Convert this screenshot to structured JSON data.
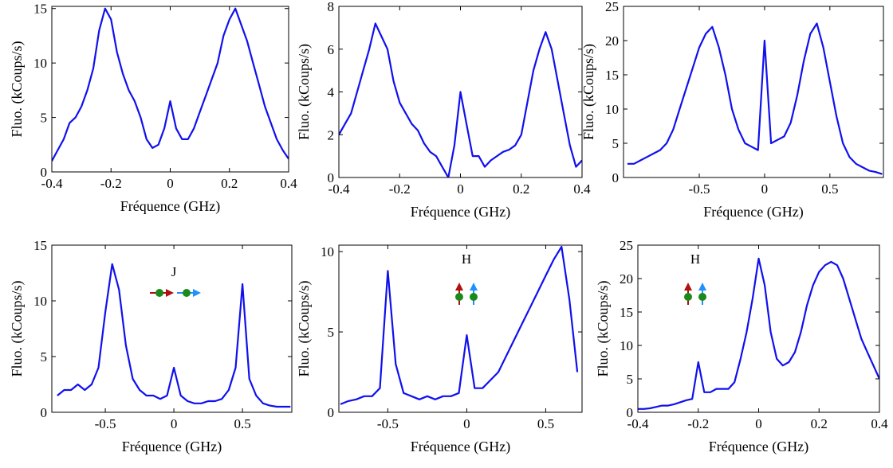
{
  "chart_data": [
    {
      "type": "line",
      "x_label": "Fréquence (GHz)",
      "y_label": "Fluo. (kCoups/s)",
      "color": "#1010ee",
      "x": [
        -0.4,
        -0.38,
        -0.36,
        -0.34,
        -0.32,
        -0.3,
        -0.28,
        -0.26,
        -0.24,
        -0.22,
        -0.2,
        -0.18,
        -0.16,
        -0.14,
        -0.12,
        -0.1,
        -0.08,
        -0.06,
        -0.04,
        -0.02,
        0,
        0.02,
        0.04,
        0.06,
        0.08,
        0.1,
        0.12,
        0.14,
        0.16,
        0.18,
        0.2,
        0.22,
        0.24,
        0.26,
        0.28,
        0.3,
        0.32,
        0.34,
        0.36,
        0.38,
        0.4
      ],
      "values": [
        1,
        2,
        3,
        4.5,
        5,
        6,
        7.5,
        9.5,
        13,
        15,
        14,
        11,
        9,
        7.5,
        6.5,
        5,
        3,
        2.2,
        2.5,
        4,
        6.5,
        4,
        3,
        3,
        4,
        5.5,
        7,
        8.5,
        10,
        12.5,
        14,
        15,
        13.5,
        12,
        10,
        8,
        6,
        4.5,
        3,
        2,
        1.2
      ],
      "xlim": [
        -0.4,
        0.4
      ],
      "ylim": [
        0,
        15.2
      ],
      "xticks": [
        -0.4,
        -0.2,
        0,
        0.2,
        0.4
      ],
      "yticks": [
        0,
        5,
        10,
        15
      ]
    },
    {
      "type": "line",
      "x_label": "Fréquence (GHz)",
      "y_label": "Fluo. (kCoups/s)",
      "color": "#1010ee",
      "x": [
        -0.4,
        -0.38,
        -0.36,
        -0.34,
        -0.32,
        -0.3,
        -0.28,
        -0.26,
        -0.24,
        -0.22,
        -0.2,
        -0.18,
        -0.16,
        -0.14,
        -0.12,
        -0.1,
        -0.08,
        -0.06,
        -0.04,
        -0.02,
        0,
        0.02,
        0.04,
        0.06,
        0.08,
        0.1,
        0.12,
        0.14,
        0.16,
        0.18,
        0.2,
        0.22,
        0.24,
        0.26,
        0.28,
        0.3,
        0.32,
        0.34,
        0.36,
        0.38,
        0.4
      ],
      "values": [
        2,
        2.5,
        3,
        4,
        5,
        6,
        7.2,
        6.6,
        6,
        4.5,
        3.5,
        3,
        2.5,
        2.2,
        1.6,
        1.2,
        1,
        0.5,
        0,
        1.5,
        4,
        2.5,
        1,
        1,
        0.5,
        0.8,
        1,
        1.2,
        1.3,
        1.5,
        2,
        3.5,
        5,
        6,
        6.8,
        6,
        4.5,
        3,
        1.5,
        0.5,
        0.8
      ],
      "xlim": [
        -0.4,
        0.4
      ],
      "ylim": [
        0,
        8
      ],
      "xticks": [
        -0.4,
        -0.2,
        0,
        0.2,
        0.4
      ],
      "yticks": [
        0,
        2,
        4,
        6,
        8
      ]
    },
    {
      "type": "line",
      "x_label": "Fréquence (GHz)",
      "y_label": "Fluo. (kCoups/s)",
      "color": "#1010ee",
      "x": [
        -1.05,
        -1,
        -0.95,
        -0.9,
        -0.85,
        -0.8,
        -0.75,
        -0.7,
        -0.65,
        -0.6,
        -0.55,
        -0.5,
        -0.45,
        -0.4,
        -0.35,
        -0.3,
        -0.25,
        -0.2,
        -0.15,
        -0.1,
        -0.05,
        0,
        0.05,
        0.1,
        0.15,
        0.2,
        0.25,
        0.3,
        0.35,
        0.4,
        0.45,
        0.5,
        0.55,
        0.6,
        0.65,
        0.7,
        0.75,
        0.8,
        0.85,
        0.9
      ],
      "values": [
        2,
        2,
        2.5,
        3,
        3.5,
        4,
        5,
        7,
        10,
        13,
        16,
        19,
        21,
        22,
        19,
        15,
        10,
        7,
        5,
        4.5,
        4,
        20,
        5,
        5.5,
        6,
        8,
        12,
        17,
        21,
        22.5,
        19,
        14,
        9,
        5,
        3,
        2,
        1.5,
        1,
        0.8,
        0.5
      ],
      "xlim": [
        -1.08,
        0.91
      ],
      "ylim": [
        0,
        25
      ],
      "xticks": [
        -0.5,
        0,
        0.5
      ],
      "yticks": [
        0,
        5,
        10,
        15,
        20,
        25
      ]
    },
    {
      "type": "line",
      "x_label": "Fréquence (GHz)",
      "y_label": "Fluo. (kCoups/s)",
      "color": "#1010ee",
      "annotation": "J",
      "x": [
        -0.85,
        -0.8,
        -0.75,
        -0.7,
        -0.65,
        -0.6,
        -0.55,
        -0.5,
        -0.45,
        -0.4,
        -0.35,
        -0.3,
        -0.25,
        -0.2,
        -0.15,
        -0.1,
        -0.05,
        0,
        0.05,
        0.1,
        0.15,
        0.2,
        0.25,
        0.3,
        0.35,
        0.4,
        0.45,
        0.5,
        0.55,
        0.6,
        0.65,
        0.7,
        0.75,
        0.8,
        0.85
      ],
      "values": [
        1.5,
        2,
        2,
        2.5,
        2,
        2.5,
        4,
        9,
        13.3,
        11,
        6,
        3,
        2,
        1.5,
        1.5,
        1.2,
        1.5,
        4,
        1.5,
        1,
        0.8,
        0.8,
        1,
        1,
        1.2,
        2,
        4,
        11.5,
        3,
        1.5,
        0.8,
        0.6,
        0.5,
        0.5,
        0.5
      ],
      "xlim": [
        -0.89,
        0.86
      ],
      "ylim": [
        0,
        15
      ],
      "xticks": [
        -0.5,
        0,
        0.5
      ],
      "yticks": [
        0,
        5,
        10,
        15
      ]
    },
    {
      "type": "line",
      "x_label": "Fréquence (GHz)",
      "y_label": "Fluo. (kCoups/s)",
      "color": "#1010ee",
      "annotation": "H",
      "x": [
        -0.8,
        -0.75,
        -0.7,
        -0.65,
        -0.6,
        -0.55,
        -0.5,
        -0.45,
        -0.4,
        -0.35,
        -0.3,
        -0.25,
        -0.2,
        -0.15,
        -0.1,
        -0.05,
        0,
        0.05,
        0.1,
        0.15,
        0.2,
        0.25,
        0.3,
        0.35,
        0.4,
        0.45,
        0.5,
        0.55,
        0.6,
        0.65,
        0.7
      ],
      "values": [
        0.5,
        0.7,
        0.8,
        1,
        1,
        1.5,
        8.8,
        3,
        1.2,
        1,
        0.8,
        1,
        0.8,
        1,
        1,
        1.2,
        4.8,
        1.5,
        1.5,
        2,
        2.5,
        3.5,
        4.5,
        5.5,
        6.5,
        7.5,
        8.5,
        9.5,
        10.3,
        7,
        2.5
      ],
      "xlim": [
        -0.81,
        0.73
      ],
      "ylim": [
        0,
        10.4
      ],
      "xticks": [
        -0.5,
        0,
        0.5
      ],
      "yticks": [
        0,
        5,
        10
      ]
    },
    {
      "type": "line",
      "x_label": "Fréquence (GHz)",
      "y_label": "Fluo. (kCoups/s)",
      "color": "#1010ee",
      "annotation": "H",
      "x": [
        -0.4,
        -0.38,
        -0.36,
        -0.34,
        -0.32,
        -0.3,
        -0.28,
        -0.26,
        -0.24,
        -0.22,
        -0.2,
        -0.18,
        -0.16,
        -0.14,
        -0.12,
        -0.1,
        -0.08,
        -0.06,
        -0.04,
        -0.02,
        0,
        0.02,
        0.04,
        0.06,
        0.08,
        0.1,
        0.12,
        0.14,
        0.16,
        0.18,
        0.2,
        0.22,
        0.24,
        0.26,
        0.28,
        0.3,
        0.32,
        0.34,
        0.36,
        0.38,
        0.4
      ],
      "values": [
        0.5,
        0.5,
        0.6,
        0.8,
        1,
        1,
        1.2,
        1.5,
        1.8,
        2,
        7.5,
        3,
        3,
        3.5,
        3.5,
        3.5,
        4.5,
        8,
        12,
        17,
        23,
        19,
        12,
        8,
        7,
        7.5,
        9,
        12,
        16,
        19,
        21,
        22,
        22.5,
        22,
        20,
        17,
        14,
        11,
        9,
        7,
        5
      ],
      "xlim": [
        -0.4,
        0.4
      ],
      "ylim": [
        0,
        25
      ],
      "xticks": [
        -0.4,
        -0.2,
        0,
        0.2,
        0.4
      ],
      "yticks": [
        0,
        5,
        10,
        15,
        20,
        25
      ]
    }
  ]
}
